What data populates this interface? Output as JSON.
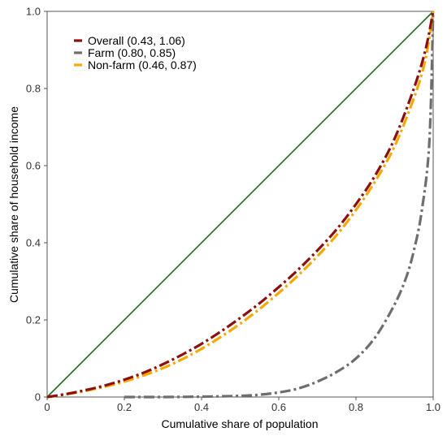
{
  "chart_data": {
    "type": "line",
    "title": "",
    "xlabel": "Cumulative share of population",
    "ylabel": "Cumulative share of household income",
    "xlim": [
      0,
      1
    ],
    "ylim": [
      0,
      1
    ],
    "x_ticks": [
      "0",
      "0.2",
      "0.4",
      "0.6",
      "0.8",
      "1.0"
    ],
    "y_ticks": [
      "0",
      "0.2",
      "0.4",
      "0.6",
      "0.8",
      "1.0"
    ],
    "grid": false,
    "legend_position": "top-left",
    "equality_line": {
      "x": [
        0,
        1
      ],
      "y": [
        0,
        1
      ],
      "color": "#1e6b1e"
    },
    "series": [
      {
        "name": "Overall (0.43, 1.06)",
        "color": "#8b0f0f",
        "x": [
          0,
          0.05,
          0.1,
          0.15,
          0.2,
          0.25,
          0.3,
          0.35,
          0.4,
          0.45,
          0.5,
          0.55,
          0.6,
          0.65,
          0.7,
          0.75,
          0.8,
          0.85,
          0.9,
          0.95,
          0.98,
          1.0
        ],
        "y": [
          0,
          0.008,
          0.018,
          0.03,
          0.045,
          0.063,
          0.085,
          0.11,
          0.138,
          0.17,
          0.205,
          0.243,
          0.285,
          0.33,
          0.38,
          0.435,
          0.5,
          0.575,
          0.67,
          0.8,
          0.9,
          1.0
        ]
      },
      {
        "name": "Farm (0.80, 0.85)",
        "color": "#6e6e6e",
        "x": [
          0.2,
          0.3,
          0.4,
          0.5,
          0.55,
          0.6,
          0.65,
          0.7,
          0.75,
          0.8,
          0.85,
          0.9,
          0.93,
          0.95,
          0.97,
          0.99,
          1.0
        ],
        "y": [
          0,
          0,
          0.001,
          0.003,
          0.006,
          0.012,
          0.022,
          0.04,
          0.065,
          0.1,
          0.155,
          0.24,
          0.31,
          0.38,
          0.48,
          0.66,
          1.0
        ]
      },
      {
        "name": "Non-farm (0.46, 0.87)",
        "color": "#f5a800",
        "x": [
          0,
          0.05,
          0.1,
          0.15,
          0.2,
          0.25,
          0.3,
          0.35,
          0.4,
          0.45,
          0.5,
          0.55,
          0.6,
          0.65,
          0.7,
          0.75,
          0.8,
          0.85,
          0.9,
          0.95,
          0.98,
          1.0
        ],
        "y": [
          0,
          0.007,
          0.016,
          0.027,
          0.04,
          0.056,
          0.075,
          0.098,
          0.125,
          0.156,
          0.19,
          0.228,
          0.27,
          0.315,
          0.365,
          0.42,
          0.485,
          0.56,
          0.65,
          0.775,
          0.875,
          1.0
        ]
      }
    ]
  }
}
